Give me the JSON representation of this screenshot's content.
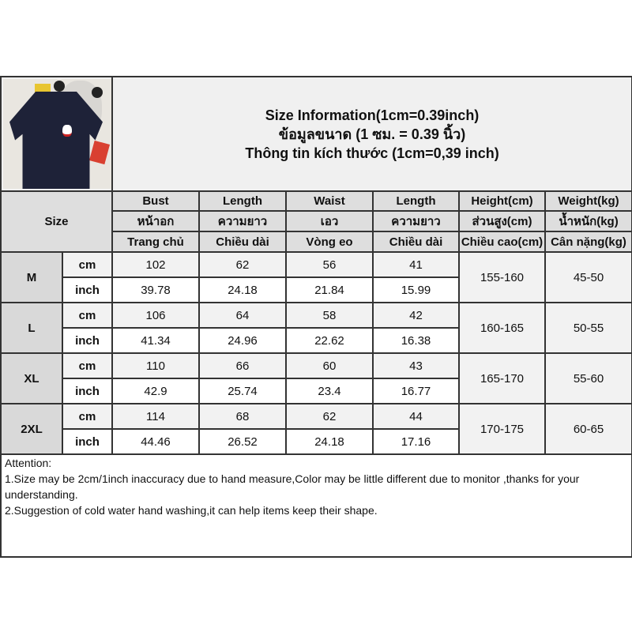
{
  "title": {
    "line1": "Size Information(1cm=0.39inch)",
    "line2": "ข้อมูลขนาด (1 ซม. = 0.39 นิ้ว)",
    "line3": "Thông tin kích thước (1cm=0,39 inch)"
  },
  "size_label": "Size",
  "columns": [
    {
      "en": "Bust",
      "th": "หน้าอก",
      "vi": "Trang chủ"
    },
    {
      "en": "Length",
      "th": "ความยาว",
      "vi": "Chiều dài"
    },
    {
      "en": "Waist",
      "th": "เอว",
      "vi": "Vòng eo"
    },
    {
      "en": "Length",
      "th": "ความยาว",
      "vi": "Chiều dài"
    },
    {
      "en": "Height(cm)",
      "th": "ส่วนสูง(cm)",
      "vi": "Chiều cao(cm)"
    },
    {
      "en": "Weight(kg)",
      "th": "น้ำหนัก(kg)",
      "vi": "Cân nặng(kg)"
    }
  ],
  "units": {
    "cm": "cm",
    "inch": "inch"
  },
  "rows": [
    {
      "size": "M",
      "cm": [
        "102",
        "62",
        "56",
        "41"
      ],
      "inch": [
        "39.78",
        "24.18",
        "21.84",
        "15.99"
      ],
      "height": "155-160",
      "weight": "45-50"
    },
    {
      "size": "L",
      "cm": [
        "106",
        "64",
        "58",
        "42"
      ],
      "inch": [
        "41.34",
        "24.96",
        "22.62",
        "16.38"
      ],
      "height": "160-165",
      "weight": "50-55"
    },
    {
      "size": "XL",
      "cm": [
        "110",
        "66",
        "60",
        "43"
      ],
      "inch": [
        "42.9",
        "25.74",
        "23.4",
        "16.77"
      ],
      "height": "165-170",
      "weight": "55-60"
    },
    {
      "size": "2XL",
      "cm": [
        "114",
        "68",
        "62",
        "44"
      ],
      "inch": [
        "44.46",
        "26.52",
        "24.18",
        "17.16"
      ],
      "height": "170-175",
      "weight": "60-65"
    }
  ],
  "attention": {
    "heading": "Attention:",
    "note1": "1.Size may be 2cm/1inch inaccuracy due to hand measure,Color may be little different due to monitor ,thanks for your understanding.",
    "note2": "2.Suggestion of cold water hand washing,it can help items keep their shape."
  }
}
